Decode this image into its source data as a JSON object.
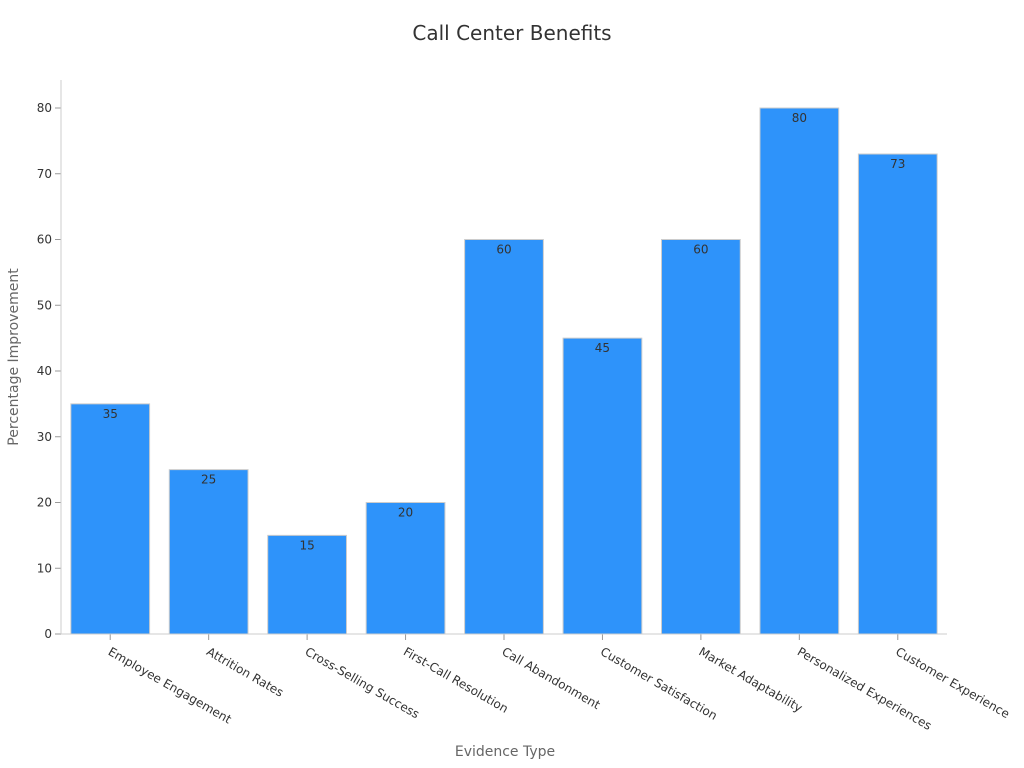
{
  "chart_data": {
    "type": "bar",
    "title": "Call Center Benefits",
    "xlabel": "Evidence Type",
    "ylabel": "Percentage Improvement",
    "categories": [
      "Employee Engagement",
      "Attrition Rates",
      "Cross-Selling Success",
      "First-Call Resolution",
      "Call Abandonment",
      "Customer Satisfaction",
      "Market Adaptability",
      "Personalized Experiences",
      "Customer Experience"
    ],
    "values": [
      35,
      25,
      15,
      20,
      60,
      45,
      60,
      80,
      73
    ],
    "ylim": [
      0,
      84
    ],
    "yticks": [
      0,
      10,
      20,
      30,
      40,
      50,
      60,
      70,
      80
    ],
    "bar_color": "#2e93fa",
    "grid": false,
    "legend": "none"
  }
}
